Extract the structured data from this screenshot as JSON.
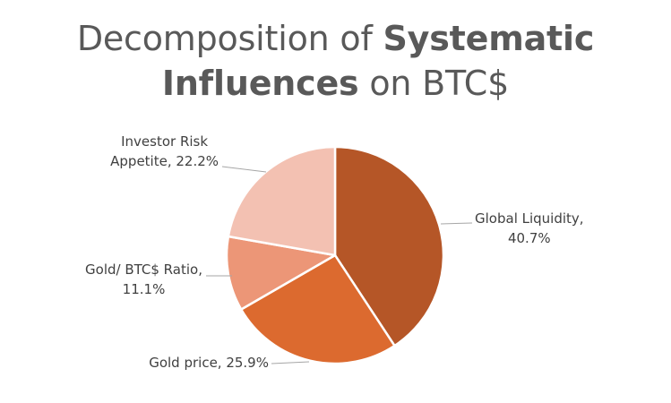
{
  "title": {
    "part1": "Decomposition of ",
    "bold1": "Systematic",
    "bold2": "Influences",
    "part2": " on BTC$"
  },
  "chart_data": {
    "type": "pie",
    "title": "Decomposition of Systematic Influences on BTC$",
    "slices": [
      {
        "label": "Global Liquidity",
        "value": 40.7,
        "label_text": "40.7%",
        "color": "#B55627"
      },
      {
        "label": "Gold price",
        "value": 25.9,
        "label_text": "25.9%",
        "color": "#DC6A2F"
      },
      {
        "label": "Gold/ BTC$ Ratio",
        "value": 11.1,
        "label_text": "11.1%",
        "color": "#EC9677"
      },
      {
        "label": "Investor Risk Appetite",
        "value": 22.2,
        "label_text": "22.2%",
        "color": "#F3C1B2"
      }
    ],
    "labels": [
      {
        "line1": "Global Liquidity,",
        "line2": "40.7%"
      },
      {
        "line1": "Gold price, 25.9%",
        "line2": ""
      },
      {
        "line1": "Gold/ BTC$ Ratio,",
        "line2": "11.1%"
      },
      {
        "line1": "Investor Risk",
        "line2": "Appetite, 22.2%"
      }
    ],
    "legend": "none"
  }
}
